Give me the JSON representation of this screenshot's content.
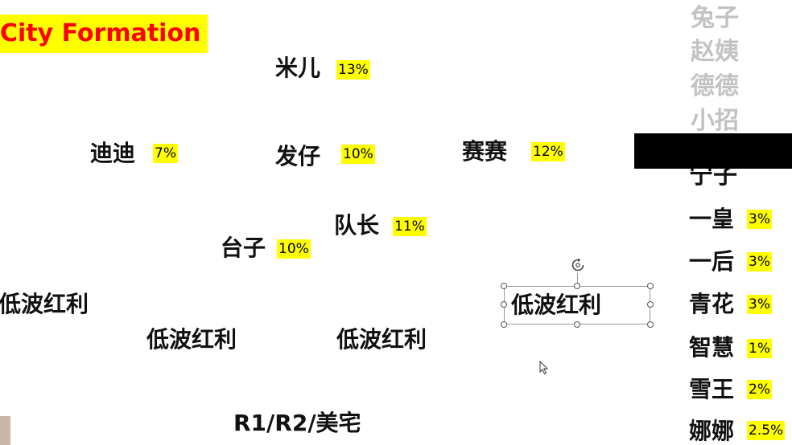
{
  "slide": {
    "title": "City Formation",
    "colors": {
      "title_text": "#ff0000",
      "highlight": "#ffff00",
      "redaction": "#000000",
      "faded_text": "#c2c2c2"
    },
    "nodes": [
      {
        "name": "米儿",
        "pct": "13%"
      },
      {
        "name": "迪迪",
        "pct": "7%"
      },
      {
        "name": "发仔",
        "pct": "10%"
      },
      {
        "name": "赛赛",
        "pct": "12%"
      },
      {
        "name": "队长",
        "pct": "11%"
      },
      {
        "name": "台子",
        "pct": "10%"
      }
    ],
    "low_wave_labels": [
      "低波红利",
      "低波红利",
      "低波红利",
      "低波红利"
    ],
    "bottom_label": "R1/R2/美宅",
    "sidebar_faded": [
      "兔子",
      "赵姨",
      "德德",
      "小招"
    ],
    "sidebar_partial": "宁子",
    "sidebar_items": [
      {
        "name": "一皇",
        "pct": "3%"
      },
      {
        "name": "一后",
        "pct": "3%"
      },
      {
        "name": "青花",
        "pct": "3%"
      },
      {
        "name": "智慧",
        "pct": "1%"
      },
      {
        "name": "雪王",
        "pct": "2%"
      },
      {
        "name": "娜娜",
        "pct": "2.5%"
      }
    ],
    "icons": {
      "rotate": "rotate-handle-icon",
      "cursor": "mouse-pointer-icon"
    }
  }
}
